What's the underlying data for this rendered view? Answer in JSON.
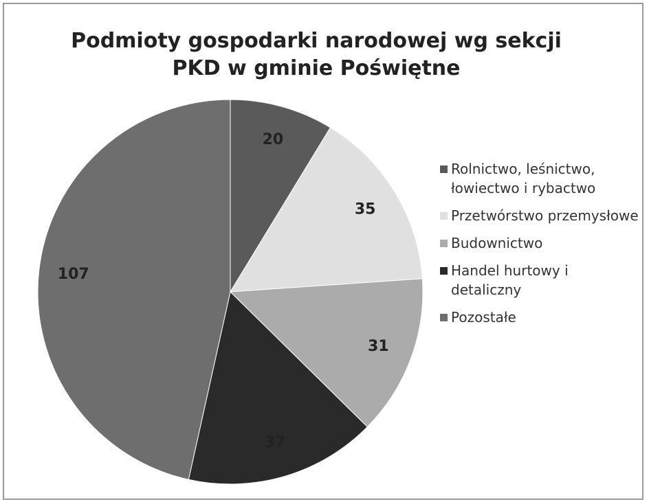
{
  "chart_data": {
    "type": "pie",
    "title": "Podmioty gospodarki narodowej wg sekcji PKD w gminie Poświętne",
    "series": [
      {
        "name": "Rolnictwo, leśnictwo, łowiectwo i rybactwo",
        "color": "#5a5a5a",
        "values": [
          20
        ]
      },
      {
        "name": "Przetwórstwo przemysłowe",
        "color": "#e0e0e0",
        "values": [
          35
        ]
      },
      {
        "name": "Budownictwo",
        "color": "#ababab",
        "values": [
          31
        ]
      },
      {
        "name": "Handel hurtowy i detaliczny",
        "color": "#2a2a2a",
        "values": [
          37
        ]
      },
      {
        "name": "Pozostałe",
        "color": "#6e6e6e",
        "values": [
          107
        ]
      }
    ],
    "legend": "right"
  }
}
